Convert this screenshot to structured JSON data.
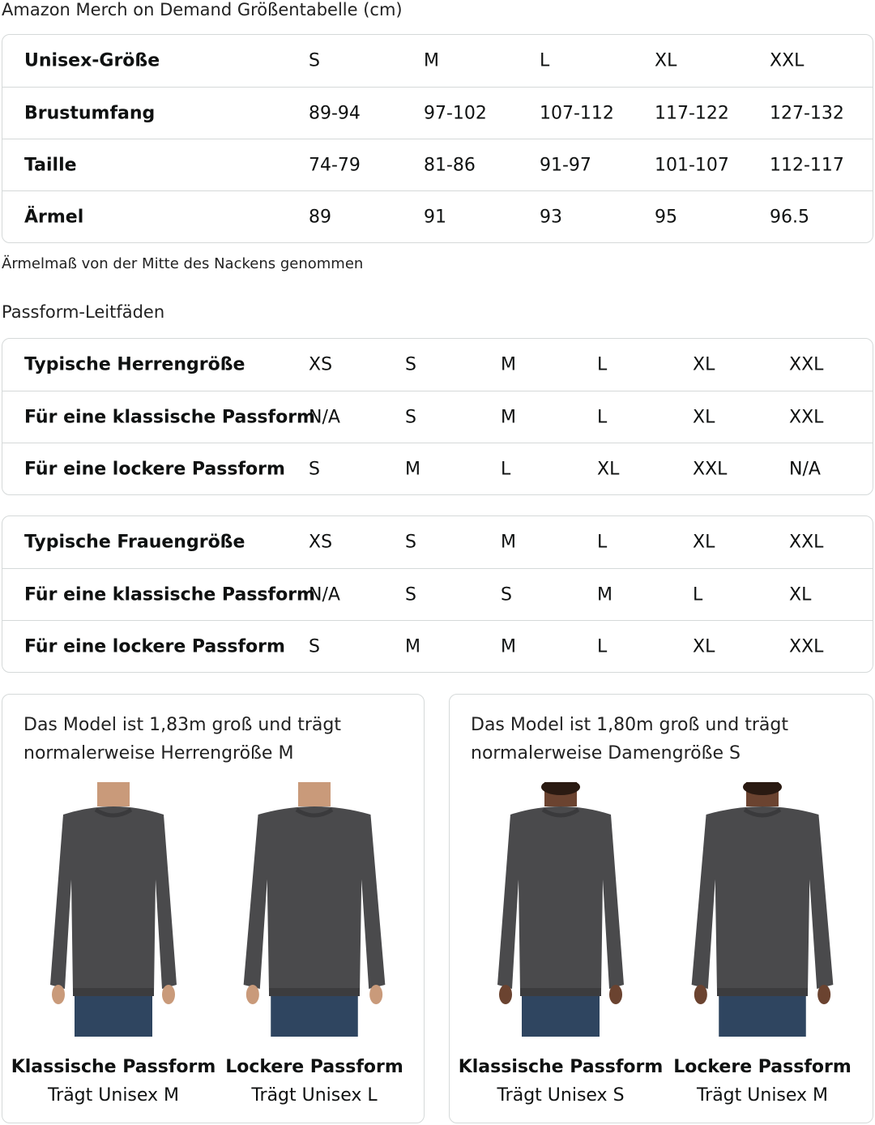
{
  "title": "Amazon Merch on Demand Größentabelle (cm)",
  "size_table": {
    "rows": [
      {
        "label": "Unisex-Größe",
        "values": [
          "S",
          "M",
          "L",
          "XL",
          "XXL"
        ]
      },
      {
        "label": "Brustumfang",
        "values": [
          "89-94",
          "97-102",
          "107-112",
          "117-122",
          "127-132"
        ]
      },
      {
        "label": "Taille",
        "values": [
          "74-79",
          "81-86",
          "91-97",
          "101-107",
          "112-117"
        ]
      },
      {
        "label": "Ärmel",
        "values": [
          "89",
          "91",
          "93",
          "95",
          "96.5"
        ]
      }
    ]
  },
  "note": "Ärmelmaß von der Mitte des Nackens genommen",
  "fit_guide_title": "Passform-Leitfäden",
  "men_table": {
    "rows": [
      {
        "label": "Typische Herrengröße",
        "values": [
          "XS",
          "S",
          "M",
          "L",
          "XL",
          "XXL"
        ]
      },
      {
        "label": "Für eine klassische Passform",
        "values": [
          "N/A",
          "S",
          "M",
          "L",
          "XL",
          "XXL"
        ]
      },
      {
        "label": "Für eine lockere Passform",
        "values": [
          "S",
          "M",
          "L",
          "XL",
          "XXL",
          "N/A"
        ]
      }
    ]
  },
  "women_table": {
    "rows": [
      {
        "label": "Typische Frauengröße",
        "values": [
          "XS",
          "S",
          "M",
          "L",
          "XL",
          "XXL"
        ]
      },
      {
        "label": "Für eine klassische Passform",
        "values": [
          "N/A",
          "S",
          "S",
          "M",
          "L",
          "XL"
        ]
      },
      {
        "label": "Für eine lockere Passform",
        "values": [
          "S",
          "M",
          "M",
          "L",
          "XL",
          "XXL"
        ]
      }
    ]
  },
  "cards": [
    {
      "desc": "Das Model ist 1,83m groß und trägt normalerweise Herrengröße M",
      "figures": [
        {
          "fit": "Klassische Passform",
          "wears": "Trägt Unisex M"
        },
        {
          "fit": "Lockere Passform",
          "wears": "Trägt Unisex L"
        }
      ]
    },
    {
      "desc": "Das Model ist 1,80m groß und trägt normalerweise Damengröße S",
      "figures": [
        {
          "fit": "Klassische Passform",
          "wears": "Trägt Unisex S"
        },
        {
          "fit": "Lockere Passform",
          "wears": "Trägt Unisex M"
        }
      ]
    }
  ],
  "colors": {
    "border": "#d5d9d9",
    "sweatshirt": "#4a4a4c",
    "jeans": "#2f4560"
  }
}
